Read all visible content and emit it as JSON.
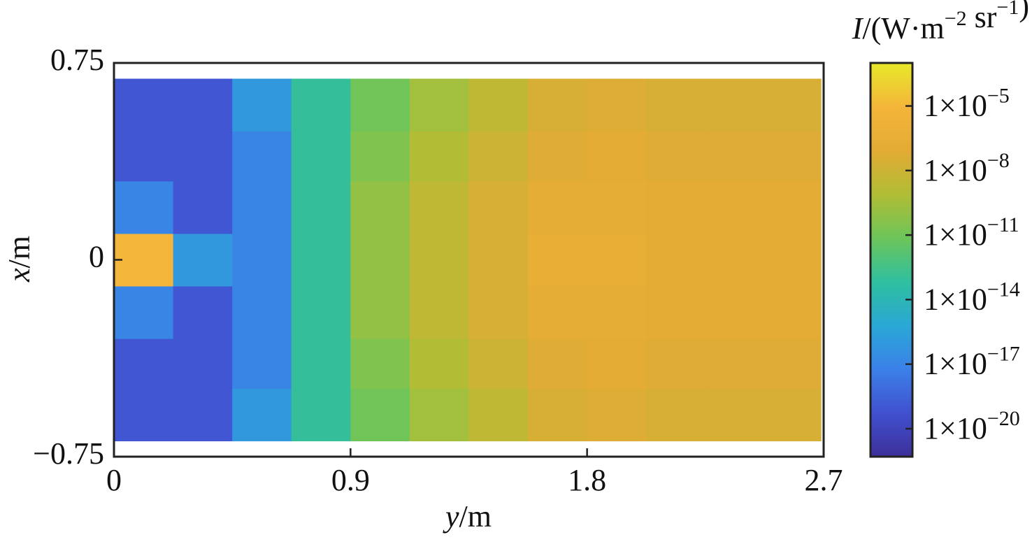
{
  "chart_data": {
    "type": "heatmap",
    "title": "I/(W·m−2 sr−1)",
    "x_label": "y/m",
    "y_label": "x/m",
    "xlim": [
      0,
      2.7
    ],
    "xticks": [
      0,
      0.9,
      1.8,
      2.7
    ],
    "ylim": [
      -0.75,
      0.75
    ],
    "yticks": [
      {
        "value": -0.75,
        "label": "−0.75"
      },
      0,
      0.75
    ],
    "x_edges": [
      0,
      0.225,
      0.45,
      0.675,
      0.9,
      1.125,
      1.35,
      1.575,
      1.8,
      2.025,
      2.25,
      2.475,
      2.69
    ],
    "y_edges": [
      -0.69,
      -0.49,
      -0.3,
      -0.1,
      0.1,
      0.3,
      0.49,
      0.69
    ],
    "z": [
      [
        1e-19,
        1e-19,
        1e-16,
        1e-13,
        1e-11,
        3e-10,
        3e-09,
        3e-08,
        5e-08,
        3e-08,
        3e-08,
        3e-08
      ],
      [
        1e-19,
        1e-19,
        1e-17,
        1e-13,
        3e-11,
        1e-09,
        1e-08,
        6e-08,
        1e-07,
        6e-08,
        6e-08,
        6e-08
      ],
      [
        1e-17,
        1e-19,
        1e-17,
        1e-13,
        1e-10,
        3e-09,
        3e-08,
        1.5e-07,
        1.5e-07,
        1e-07,
        1e-07,
        1e-07
      ],
      [
        1e-05,
        1e-16,
        1e-17,
        1e-13,
        1e-10,
        3e-09,
        3e-08,
        3e-07,
        3e-07,
        1e-07,
        1e-07,
        1e-07
      ],
      [
        1e-17,
        1e-19,
        1e-17,
        1e-13,
        1e-10,
        3e-09,
        3e-08,
        1.5e-07,
        1.5e-07,
        1e-07,
        1e-07,
        1e-07
      ],
      [
        1e-19,
        1e-19,
        1e-17,
        1e-13,
        3e-11,
        1e-09,
        1e-08,
        6e-08,
        1e-07,
        6e-08,
        6e-08,
        6e-08
      ],
      [
        1e-19,
        1e-19,
        1e-16,
        1e-13,
        1e-11,
        3e-10,
        3e-09,
        3e-08,
        5e-08,
        3e-08,
        3e-08,
        3e-08
      ]
    ],
    "colorbar": {
      "log": true,
      "lim": [
        5e-22,
        0.001
      ],
      "colors": [
        "#3d2f9a",
        "#4150cf",
        "#3b80e8",
        "#2aa8d6",
        "#2fbfa0",
        "#6cc55a",
        "#b0bd35",
        "#e3ab35",
        "#f4b53a",
        "#e8e82a"
      ],
      "ticks": [
        {
          "value": 1e-20,
          "label": "1×10−20"
        },
        {
          "value": 1e-17,
          "label": "1×10−17"
        },
        {
          "value": 1e-14,
          "label": "1×10−14"
        },
        {
          "value": 1e-11,
          "label": "1×10−11"
        },
        {
          "value": 1e-08,
          "label": "1×10−8"
        },
        {
          "value": 1e-05,
          "label": "1×10−5"
        }
      ]
    }
  }
}
